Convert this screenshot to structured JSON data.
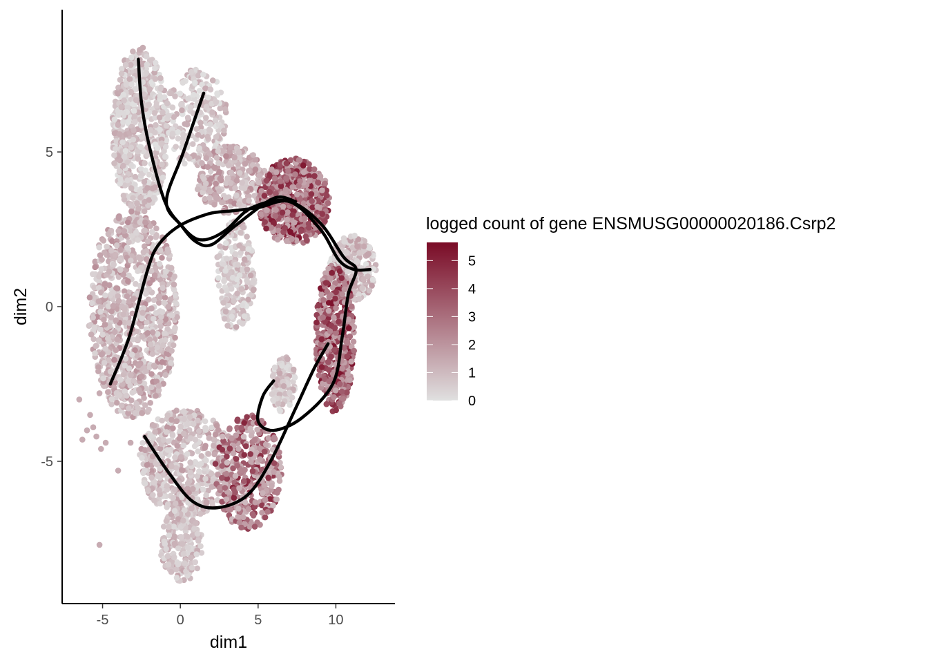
{
  "chart_data": {
    "type": "scatter",
    "title": "",
    "xlabel": "dim1",
    "ylabel": "dim2",
    "xlim": [
      -7.6,
      13.8
    ],
    "ylim": [
      -9.6,
      9.6
    ],
    "x_ticks": [
      -5,
      0,
      5,
      10
    ],
    "x_tick_labels": [
      "-5",
      "0",
      "5",
      "10"
    ],
    "y_ticks": [
      -5,
      0,
      5
    ],
    "y_tick_labels": [
      "-5",
      "0",
      "5"
    ],
    "grid": false,
    "legend": {
      "title": "logged count of gene ENSMUSG00000020186.Csrp2",
      "placement": "right",
      "type": "colorbar",
      "range": [
        0,
        5.65
      ],
      "breaks": [
        0,
        1,
        2,
        3,
        4,
        5
      ],
      "break_labels": [
        "0",
        "1",
        "2",
        "3",
        "4",
        "5"
      ],
      "low_color": "#e0e0e0",
      "high_color": "#7a0b26"
    },
    "point_regions": [
      {
        "region": "left-upper-stem",
        "x": [
          -4.4,
          -0.8
        ],
        "y": [
          3.0,
          8.4
        ],
        "expression": [
          0.0,
          1.5
        ],
        "n": 650
      },
      {
        "region": "upper-diagonal-branch",
        "x": [
          -1.0,
          3.0
        ],
        "y": [
          4.5,
          7.7
        ],
        "expression": [
          0.0,
          1.5
        ],
        "n": 230
      },
      {
        "region": "left-mid-body",
        "x": [
          -5.9,
          -0.2
        ],
        "y": [
          -3.6,
          3.2
        ],
        "expression": [
          0.3,
          2.2
        ],
        "n": 1000
      },
      {
        "region": "top-middle-cluster",
        "x": [
          1.0,
          5.5
        ],
        "y": [
          3.0,
          5.2
        ],
        "expression": [
          0.5,
          2.4
        ],
        "n": 270
      },
      {
        "region": "top-right-cluster",
        "x": [
          5.0,
          9.6
        ],
        "y": [
          2.0,
          4.8
        ],
        "expression": [
          1.5,
          5.5
        ],
        "n": 600
      },
      {
        "region": "central-strand",
        "x": [
          2.3,
          4.8
        ],
        "y": [
          -0.8,
          2.8
        ],
        "expression": [
          0.0,
          1.5
        ],
        "n": 230
      },
      {
        "region": "right-tip-cluster",
        "x": [
          9.6,
          12.6
        ],
        "y": [
          0.2,
          2.3
        ],
        "expression": [
          0.0,
          1.8
        ],
        "n": 270
      },
      {
        "region": "right-arc",
        "x": [
          8.7,
          11.2
        ],
        "y": [
          -3.4,
          1.4
        ],
        "expression": [
          1.5,
          5.5
        ],
        "n": 500
      },
      {
        "region": "small-central-cluster",
        "x": [
          5.8,
          7.4
        ],
        "y": [
          -3.4,
          -1.6
        ],
        "expression": [
          0.0,
          1.5
        ],
        "n": 110
      },
      {
        "region": "lower-middle-body",
        "x": [
          -2.7,
          3.3
        ],
        "y": [
          -6.8,
          -3.3
        ],
        "expression": [
          0.2,
          2.0
        ],
        "n": 560
      },
      {
        "region": "lower-right-cluster",
        "x": [
          2.2,
          6.5
        ],
        "y": [
          -7.2,
          -3.5
        ],
        "expression": [
          1.0,
          5.0
        ],
        "n": 420
      },
      {
        "region": "bottom-tail",
        "x": [
          -1.3,
          1.4
        ],
        "y": [
          -8.9,
          -6.5
        ],
        "expression": [
          0.2,
          1.6
        ],
        "n": 200
      }
    ],
    "outlier_points": [
      [
        -5.2,
        -2.8
      ],
      [
        -6.5,
        -3.0
      ],
      [
        -5.8,
        -3.5
      ],
      [
        -6.0,
        -4.0
      ],
      [
        -5.4,
        -4.2
      ],
      [
        -4.8,
        -4.4
      ],
      [
        -6.3,
        -4.3
      ],
      [
        -4.0,
        -5.3
      ],
      [
        -5.1,
        -4.6
      ],
      [
        -5.6,
        -3.9
      ],
      [
        -5.2,
        -7.7
      ],
      [
        -3.2,
        -4.4
      ]
    ],
    "trajectories": [
      {
        "points": [
          [
            -2.7,
            8.0
          ],
          [
            -2.5,
            6.6
          ],
          [
            -2.0,
            5.2
          ],
          [
            -1.0,
            3.4
          ],
          [
            0.1,
            2.6
          ],
          [
            1.0,
            2.2
          ],
          [
            1.9,
            2.2
          ],
          [
            3.0,
            2.5
          ],
          [
            4.6,
            3.2
          ],
          [
            7.0,
            3.4
          ],
          [
            9.0,
            2.5
          ],
          [
            10.2,
            1.5
          ],
          [
            11.2,
            1.2
          ],
          [
            12.2,
            1.2
          ]
        ]
      },
      {
        "points": [
          [
            1.5,
            6.9
          ],
          [
            0.2,
            5.0
          ],
          [
            -0.9,
            3.4
          ],
          [
            0.1,
            2.6
          ],
          [
            1.0,
            2.1
          ],
          [
            2.0,
            2.0
          ],
          [
            3.5,
            2.6
          ],
          [
            6.0,
            3.5
          ],
          [
            7.4,
            3.4
          ]
        ]
      },
      {
        "points": [
          [
            -4.5,
            -2.5
          ],
          [
            -3.3,
            -1.0
          ],
          [
            -2.1,
            1.2
          ],
          [
            -1.4,
            2.0
          ],
          [
            -0.1,
            2.6
          ],
          [
            1.8,
            3.0
          ],
          [
            3.4,
            3.1
          ],
          [
            5.0,
            3.2
          ],
          [
            7.0,
            3.4
          ],
          [
            9.0,
            2.7
          ],
          [
            10.5,
            1.6
          ],
          [
            11.3,
            1.2
          ],
          [
            10.8,
            0.4
          ],
          [
            10.4,
            -1.0
          ],
          [
            9.8,
            -2.5
          ],
          [
            7.8,
            -3.6
          ],
          [
            6.0,
            -4.0
          ],
          [
            5.0,
            -3.7
          ],
          [
            5.3,
            -2.9
          ],
          [
            6.0,
            -2.4
          ]
        ]
      },
      {
        "points": [
          [
            -2.3,
            -4.2
          ],
          [
            -0.7,
            -5.4
          ],
          [
            0.8,
            -6.3
          ],
          [
            2.4,
            -6.5
          ],
          [
            4.3,
            -6.1
          ],
          [
            5.8,
            -5.0
          ],
          [
            7.4,
            -3.3
          ],
          [
            8.6,
            -2.0
          ],
          [
            9.5,
            -1.2
          ]
        ]
      }
    ],
    "trajectory_color": "#000000"
  }
}
